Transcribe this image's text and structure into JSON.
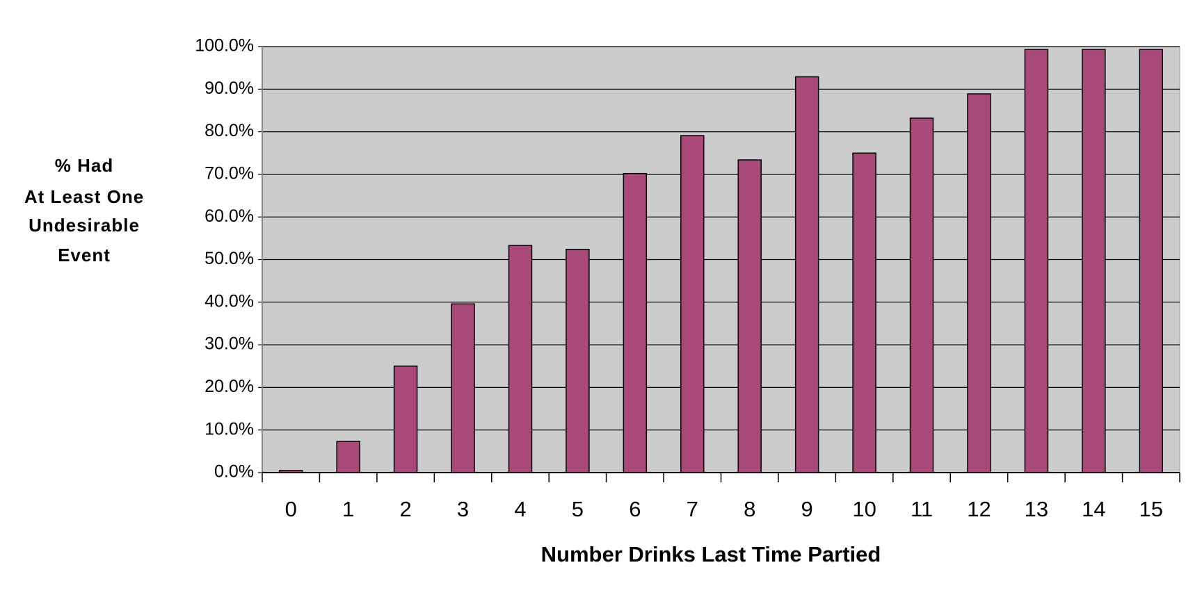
{
  "chart_data": {
    "type": "bar",
    "xlabel": "Number Drinks Last Time Partied",
    "ylabel": [
      "% Had",
      "At Least One",
      "Undesirable",
      "Event"
    ],
    "categories": [
      "0",
      "1",
      "2",
      "3",
      "4",
      "5",
      "6",
      "7",
      "8",
      "9",
      "10",
      "11",
      "12",
      "13",
      "14",
      "15"
    ],
    "values": [
      0.5,
      7.3,
      25.0,
      39.6,
      53.3,
      52.4,
      70.2,
      79.1,
      73.4,
      92.9,
      75.0,
      83.2,
      88.9,
      99.3,
      99.3,
      99.3
    ],
    "color": "#a8497a",
    "ylim": [
      0,
      100
    ],
    "yticks": [
      {
        "value": 0,
        "label": "0.0%"
      },
      {
        "value": 10,
        "label": "10.0%"
      },
      {
        "value": 20,
        "label": "20.0%"
      },
      {
        "value": 30,
        "label": "30.0%"
      },
      {
        "value": 40,
        "label": "40.0%"
      },
      {
        "value": 50,
        "label": "50.0%"
      },
      {
        "value": 60,
        "label": "60.0%"
      },
      {
        "value": 70,
        "label": "70.0%"
      },
      {
        "value": 80,
        "label": "80.0%"
      },
      {
        "value": 90,
        "label": "90.0%"
      },
      {
        "value": 100,
        "label": "100.0%"
      }
    ],
    "grid": true
  }
}
